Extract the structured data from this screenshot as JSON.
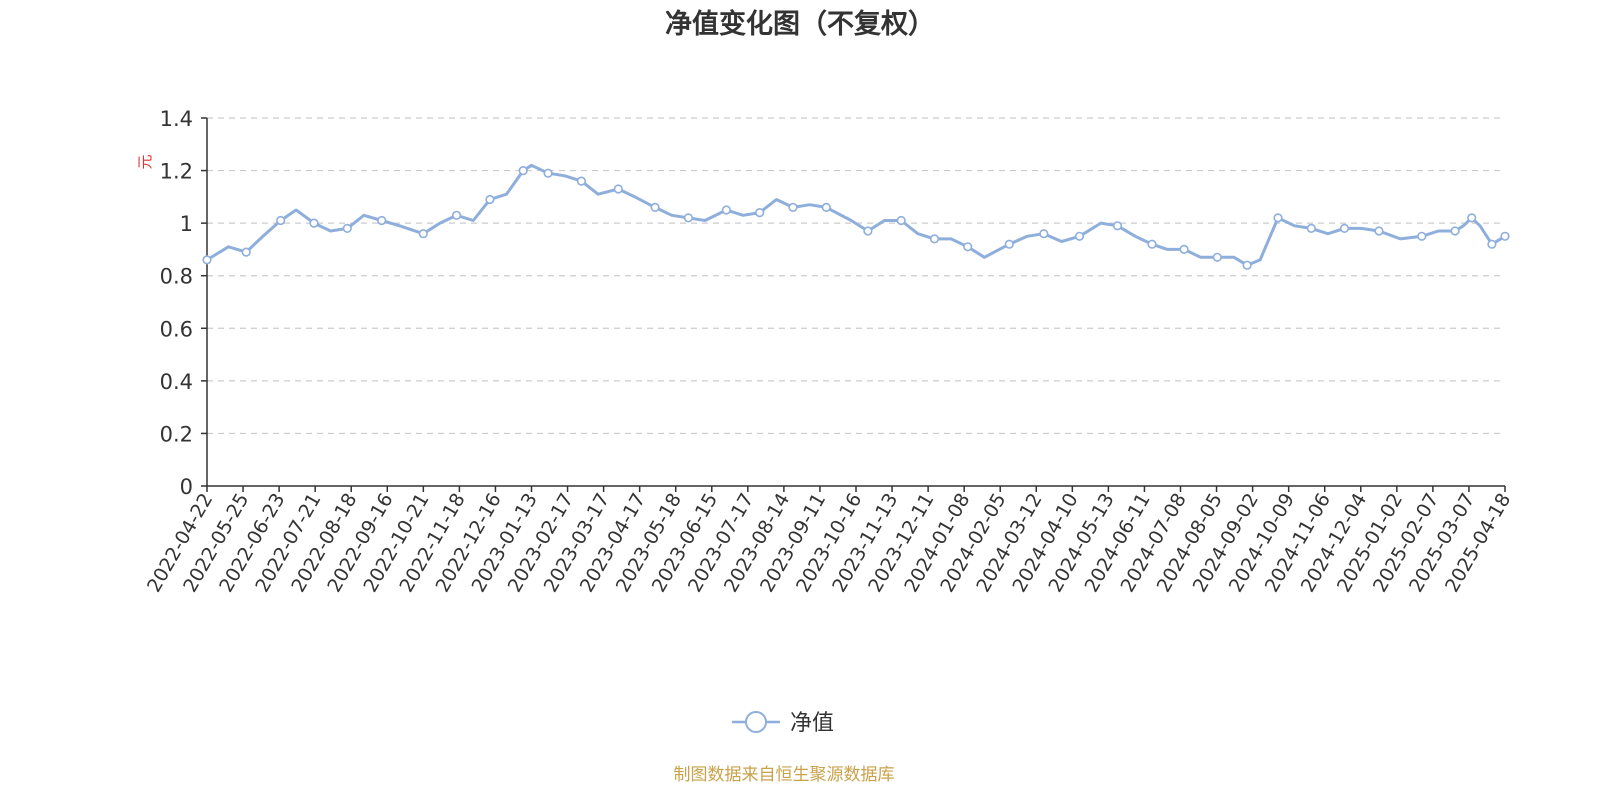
{
  "chart_data": {
    "type": "line",
    "title": "净值变化图（不复权）",
    "ylabel": "元",
    "ylim": [
      0,
      1.4
    ],
    "yticks": [
      "0",
      "0.2",
      "0.4",
      "0.6",
      "0.8",
      "1",
      "1.2",
      "1.4"
    ],
    "grid": "horizontal-dashed",
    "legend_position": "bottom-center",
    "source_note": "制图数据来自恒生聚源数据库",
    "x_tick_labels": [
      "2022-04-22",
      "2022-05-25",
      "2022-06-23",
      "2022-07-21",
      "2022-08-18",
      "2022-09-16",
      "2022-10-21",
      "2022-11-18",
      "2022-12-16",
      "2023-01-13",
      "2023-02-17",
      "2023-03-17",
      "2023-04-17",
      "2023-05-18",
      "2023-06-15",
      "2023-07-17",
      "2023-08-14",
      "2023-09-11",
      "2023-10-16",
      "2023-11-13",
      "2023-12-11",
      "2024-01-08",
      "2024-02-05",
      "2024-03-12",
      "2024-04-10",
      "2024-05-13",
      "2024-06-11",
      "2024-07-08",
      "2024-08-05",
      "2024-09-02",
      "2024-10-09",
      "2024-11-06",
      "2024-12-04",
      "2025-01-02",
      "2025-02-07",
      "2025-03-07",
      "2025-04-18"
    ],
    "series": [
      {
        "name": "净值",
        "color": "#8eaedc",
        "x": [
          "2022-04-22",
          "2022-05-10",
          "2022-05-25",
          "2022-06-08",
          "2022-06-23",
          "2022-07-06",
          "2022-07-21",
          "2022-08-04",
          "2022-08-18",
          "2022-09-01",
          "2022-09-16",
          "2022-10-01",
          "2022-10-21",
          "2022-11-04",
          "2022-11-18",
          "2022-12-02",
          "2022-12-16",
          "2022-12-30",
          "2023-01-13",
          "2023-01-20",
          "2023-02-03",
          "2023-02-17",
          "2023-03-03",
          "2023-03-17",
          "2023-04-03",
          "2023-04-17",
          "2023-05-04",
          "2023-05-18",
          "2023-06-01",
          "2023-06-15",
          "2023-07-03",
          "2023-07-17",
          "2023-07-31",
          "2023-08-14",
          "2023-08-28",
          "2023-09-11",
          "2023-09-25",
          "2023-10-16",
          "2023-10-30",
          "2023-11-13",
          "2023-11-27",
          "2023-12-11",
          "2023-12-25",
          "2024-01-08",
          "2024-01-22",
          "2024-02-05",
          "2024-02-26",
          "2024-03-12",
          "2024-03-26",
          "2024-04-10",
          "2024-04-25",
          "2024-05-13",
          "2024-05-27",
          "2024-06-11",
          "2024-06-25",
          "2024-07-08",
          "2024-07-22",
          "2024-08-05",
          "2024-08-19",
          "2024-09-02",
          "2024-09-13",
          "2024-09-24",
          "2024-10-09",
          "2024-10-23",
          "2024-11-06",
          "2024-11-20",
          "2024-12-04",
          "2024-12-18",
          "2025-01-02",
          "2025-01-20",
          "2025-02-07",
          "2025-02-21",
          "2025-03-07",
          "2025-03-14",
          "2025-03-21",
          "2025-03-28",
          "2025-04-07",
          "2025-04-18"
        ],
        "y": [
          0.86,
          0.91,
          0.89,
          0.95,
          1.01,
          1.05,
          1.0,
          0.97,
          0.98,
          1.03,
          1.01,
          0.99,
          0.96,
          1.0,
          1.03,
          1.01,
          1.09,
          1.11,
          1.2,
          1.22,
          1.19,
          1.18,
          1.16,
          1.11,
          1.13,
          1.1,
          1.06,
          1.03,
          1.02,
          1.01,
          1.05,
          1.03,
          1.04,
          1.09,
          1.06,
          1.07,
          1.06,
          1.01,
          0.97,
          1.01,
          1.01,
          0.96,
          0.94,
          0.94,
          0.91,
          0.87,
          0.92,
          0.95,
          0.96,
          0.93,
          0.95,
          1.0,
          0.99,
          0.95,
          0.92,
          0.9,
          0.9,
          0.87,
          0.87,
          0.87,
          0.84,
          0.86,
          1.02,
          0.99,
          0.98,
          0.96,
          0.98,
          0.98,
          0.97,
          0.94,
          0.95,
          0.97,
          0.97,
          0.99,
          1.02,
          0.99,
          0.92,
          0.95
        ]
      }
    ]
  }
}
